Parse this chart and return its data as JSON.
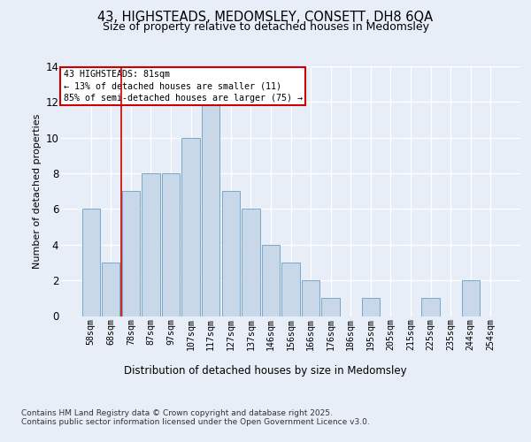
{
  "title_line1": "43, HIGHSTEADS, MEDOMSLEY, CONSETT, DH8 6QA",
  "title_line2": "Size of property relative to detached houses in Medomsley",
  "xlabel": "Distribution of detached houses by size in Medomsley",
  "ylabel": "Number of detached properties",
  "bar_labels": [
    "58sqm",
    "68sqm",
    "78sqm",
    "87sqm",
    "97sqm",
    "107sqm",
    "117sqm",
    "127sqm",
    "137sqm",
    "146sqm",
    "156sqm",
    "166sqm",
    "176sqm",
    "186sqm",
    "195sqm",
    "205sqm",
    "215sqm",
    "225sqm",
    "235sqm",
    "244sqm",
    "254sqm"
  ],
  "bar_values": [
    6,
    3,
    7,
    8,
    8,
    10,
    12,
    7,
    6,
    4,
    3,
    2,
    1,
    0,
    1,
    0,
    0,
    1,
    0,
    2,
    0
  ],
  "bar_color": "#c8d8e8",
  "bar_edge_color": "#7aa8c8",
  "bar_edge_width": 0.7,
  "annotation_box_text": "43 HIGHSTEADS: 81sqm\n← 13% of detached houses are smaller (11)\n85% of semi-detached houses are larger (75) →",
  "vline_x": 1.5,
  "vline_color": "#cc0000",
  "ylim": [
    0,
    14
  ],
  "yticks": [
    0,
    2,
    4,
    6,
    8,
    10,
    12,
    14
  ],
  "bg_color": "#e8eef8",
  "plot_bg_color": "#e8eef8",
  "grid_color": "#ffffff",
  "footer_line1": "Contains HM Land Registry data © Crown copyright and database right 2025.",
  "footer_line2": "Contains public sector information licensed under the Open Government Licence v3.0."
}
